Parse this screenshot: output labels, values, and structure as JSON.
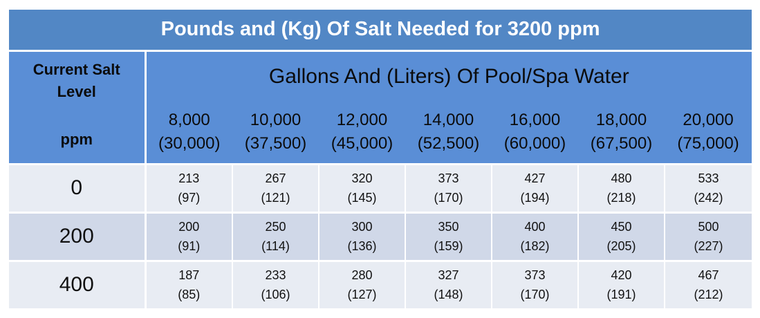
{
  "title": "Pounds and (Kg) Of Salt Needed for 3200 ppm",
  "row_header": {
    "line1": "Current Salt",
    "line2": "Level",
    "line3": "ppm"
  },
  "column_group_title": "Gallons And (Liters) Of Pool/Spa Water",
  "columns": [
    {
      "gallons": "8,000",
      "liters": "(30,000)"
    },
    {
      "gallons": "10,000",
      "liters": "(37,500)"
    },
    {
      "gallons": "12,000",
      "liters": "(45,000)"
    },
    {
      "gallons": "14,000",
      "liters": "(52,500)"
    },
    {
      "gallons": "16,000",
      "liters": "(60,000)"
    },
    {
      "gallons": "18,000",
      "liters": "(67,500)"
    },
    {
      "gallons": "20,000",
      "liters": "(75,000)"
    }
  ],
  "rows": [
    {
      "ppm": "0",
      "cells": [
        {
          "lbs": "213",
          "kg": "(97)"
        },
        {
          "lbs": "267",
          "kg": "(121)"
        },
        {
          "lbs": "320",
          "kg": "(145)"
        },
        {
          "lbs": "373",
          "kg": "(170)"
        },
        {
          "lbs": "427",
          "kg": "(194)"
        },
        {
          "lbs": "480",
          "kg": "(218)"
        },
        {
          "lbs": "533",
          "kg": "(242)"
        }
      ]
    },
    {
      "ppm": "200",
      "cells": [
        {
          "lbs": "200",
          "kg": "(91)"
        },
        {
          "lbs": "250",
          "kg": "(114)"
        },
        {
          "lbs": "300",
          "kg": "(136)"
        },
        {
          "lbs": "350",
          "kg": "(159)"
        },
        {
          "lbs": "400",
          "kg": "(182)"
        },
        {
          "lbs": "450",
          "kg": "(205)"
        },
        {
          "lbs": "500",
          "kg": "(227)"
        }
      ]
    },
    {
      "ppm": "400",
      "cells": [
        {
          "lbs": "187",
          "kg": "(85)"
        },
        {
          "lbs": "233",
          "kg": "(106)"
        },
        {
          "lbs": "280",
          "kg": "(127)"
        },
        {
          "lbs": "327",
          "kg": "(148)"
        },
        {
          "lbs": "373",
          "kg": "(170)"
        },
        {
          "lbs": "420",
          "kg": "(191)"
        },
        {
          "lbs": "467",
          "kg": "(212)"
        }
      ]
    }
  ],
  "colors": {
    "title_bg": "#5287c5",
    "header_bg": "#5a8ed6",
    "row_light": "#e8ecf3",
    "row_dark": "#d0d8e8"
  }
}
